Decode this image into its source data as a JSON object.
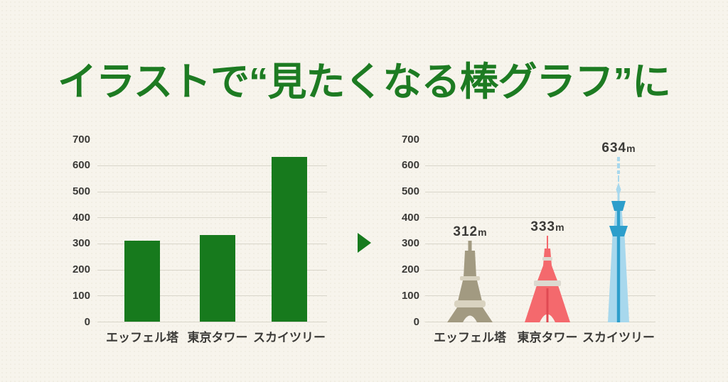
{
  "page": {
    "title": "イラストで“見たくなる棒グラフ”に"
  },
  "icons": {
    "transform_arrow": "right-pointing-triangle"
  },
  "colors": {
    "background": "#f7f4ec",
    "gridline": "#d8d5ca",
    "text_dark": "#3b3a37",
    "title_green": "#1d7b22",
    "bar_green": "#177a1d",
    "arrow_green": "#177a1d",
    "eiffel_main": "#a29a81",
    "eiffel_light": "#d9d3c0",
    "tokyo_red": "#f4696d",
    "tokyo_red_dark": "#e04a52",
    "tokyo_band": "#dcd9d0",
    "skytree_light": "#a8d8ed",
    "skytree_dark": "#2d9ecb"
  },
  "chart_data": [
    {
      "type": "bar",
      "variant": "plain",
      "title": "",
      "categories": [
        "エッフェル塔",
        "東京タワー",
        "スカイツリー"
      ],
      "values": [
        312,
        333,
        634
      ],
      "unit": "m",
      "ylim": [
        0,
        700
      ],
      "yticks": [
        0,
        100,
        200,
        300,
        400,
        500,
        600,
        700
      ],
      "gridline_max": 600,
      "grid": "horizontal",
      "legend": "none",
      "show_value_labels": false
    },
    {
      "type": "bar",
      "variant": "illustrated",
      "title": "",
      "categories": [
        "エッフェル塔",
        "東京タワー",
        "スカイツリー"
      ],
      "values": [
        312,
        333,
        634
      ],
      "value_labels": [
        "312m",
        "333m",
        "634m"
      ],
      "unit": "m",
      "illustrations": [
        "eiffel-tower",
        "tokyo-tower",
        "skytree"
      ],
      "ylim": [
        0,
        700
      ],
      "yticks": [
        0,
        100,
        200,
        300,
        400,
        500,
        600,
        700
      ],
      "gridline_max": 600,
      "grid": "horizontal",
      "legend": "none",
      "show_value_labels": true
    }
  ]
}
